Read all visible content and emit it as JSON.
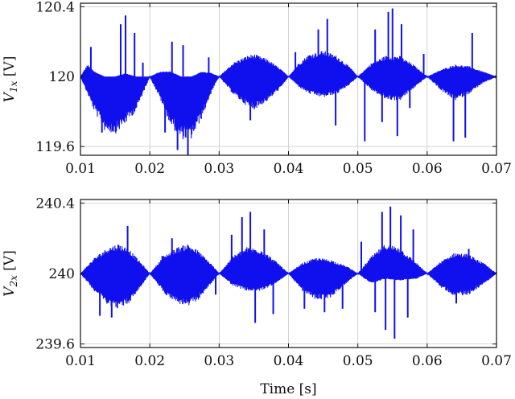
{
  "chart_data": [
    {
      "type": "line",
      "ylabel_main": "V",
      "ylabel_sub": "1x",
      "ylabel_unit": " [V]",
      "xlabel": "",
      "xlim": [
        0.01,
        0.07
      ],
      "ylim": [
        119.55,
        120.42
      ],
      "x_ticks": [
        0.01,
        0.02,
        0.03,
        0.04,
        0.05,
        0.06,
        0.07
      ],
      "x_tick_labels": [
        "0.01",
        "0.02",
        "0.03",
        "0.04",
        "0.05",
        "0.06",
        "0.07"
      ],
      "y_ticks": [
        119.6,
        120,
        120.4
      ],
      "y_tick_labels": [
        "119.6",
        "120",
        "120.4"
      ],
      "grid": true,
      "color": "#1010ee",
      "series": [
        {
          "center": 120,
          "envelope": [
            {
              "x": 0.01,
              "upper": 0.0,
              "lower": 0.0
            },
            {
              "x": 0.011,
              "upper": 0.07,
              "lower": -0.1
            },
            {
              "x": 0.012,
              "upper": 0.03,
              "lower": -0.2
            },
            {
              "x": 0.0135,
              "upper": 0.0,
              "lower": -0.31
            },
            {
              "x": 0.015,
              "upper": 0.0,
              "lower": -0.33
            },
            {
              "x": 0.0165,
              "upper": 0.02,
              "lower": -0.27
            },
            {
              "x": 0.018,
              "upper": 0.0,
              "lower": -0.2
            },
            {
              "x": 0.02,
              "upper": 0.0,
              "lower": 0.0
            },
            {
              "x": 0.0215,
              "upper": 0.03,
              "lower": -0.13
            },
            {
              "x": 0.023,
              "upper": 0.03,
              "lower": -0.28
            },
            {
              "x": 0.0245,
              "upper": 0.0,
              "lower": -0.36
            },
            {
              "x": 0.026,
              "upper": 0.0,
              "lower": -0.36
            },
            {
              "x": 0.0275,
              "upper": 0.03,
              "lower": -0.24
            },
            {
              "x": 0.029,
              "upper": 0.02,
              "lower": -0.08
            },
            {
              "x": 0.03,
              "upper": 0.0,
              "lower": 0.0
            },
            {
              "x": 0.032,
              "upper": 0.08,
              "lower": -0.1
            },
            {
              "x": 0.034,
              "upper": 0.12,
              "lower": -0.17
            },
            {
              "x": 0.035,
              "upper": 0.13,
              "lower": -0.19
            },
            {
              "x": 0.037,
              "upper": 0.1,
              "lower": -0.14
            },
            {
              "x": 0.039,
              "upper": 0.04,
              "lower": -0.06
            },
            {
              "x": 0.04,
              "upper": 0.0,
              "lower": 0.0
            },
            {
              "x": 0.0415,
              "upper": 0.08,
              "lower": -0.06
            },
            {
              "x": 0.043,
              "upper": 0.13,
              "lower": -0.1
            },
            {
              "x": 0.045,
              "upper": 0.15,
              "lower": -0.12
            },
            {
              "x": 0.047,
              "upper": 0.12,
              "lower": -0.1
            },
            {
              "x": 0.049,
              "upper": 0.05,
              "lower": -0.04
            },
            {
              "x": 0.05,
              "upper": 0.0,
              "lower": 0.0
            },
            {
              "x": 0.052,
              "upper": 0.08,
              "lower": -0.08
            },
            {
              "x": 0.054,
              "upper": 0.12,
              "lower": -0.13
            },
            {
              "x": 0.056,
              "upper": 0.12,
              "lower": -0.14
            },
            {
              "x": 0.058,
              "upper": 0.07,
              "lower": -0.07
            },
            {
              "x": 0.06,
              "upper": 0.0,
              "lower": 0.0
            },
            {
              "x": 0.062,
              "upper": 0.04,
              "lower": -0.08
            },
            {
              "x": 0.064,
              "upper": 0.07,
              "lower": -0.14
            },
            {
              "x": 0.066,
              "upper": 0.06,
              "lower": -0.1
            },
            {
              "x": 0.068,
              "upper": 0.03,
              "lower": -0.04
            },
            {
              "x": 0.07,
              "upper": 0.0,
              "lower": 0.0
            }
          ],
          "spikes": [
            {
              "x": 0.0115,
              "y": 120.17
            },
            {
              "x": 0.0123,
              "y": 119.93
            },
            {
              "x": 0.0131,
              "y": 119.68
            },
            {
              "x": 0.0158,
              "y": 120.3
            },
            {
              "x": 0.0165,
              "y": 120.35
            },
            {
              "x": 0.0178,
              "y": 120.25
            },
            {
              "x": 0.019,
              "y": 120.08
            },
            {
              "x": 0.0222,
              "y": 119.68
            },
            {
              "x": 0.0232,
              "y": 120.2
            },
            {
              "x": 0.024,
              "y": 119.58
            },
            {
              "x": 0.0248,
              "y": 120.18
            },
            {
              "x": 0.0255,
              "y": 119.55
            },
            {
              "x": 0.0285,
              "y": 120.11
            },
            {
              "x": 0.0345,
              "y": 119.75
            },
            {
              "x": 0.041,
              "y": 120.14
            },
            {
              "x": 0.0443,
              "y": 120.27
            },
            {
              "x": 0.0456,
              "y": 120.33
            },
            {
              "x": 0.0468,
              "y": 119.72
            },
            {
              "x": 0.051,
              "y": 119.63
            },
            {
              "x": 0.0525,
              "y": 120.27
            },
            {
              "x": 0.0535,
              "y": 119.74
            },
            {
              "x": 0.0544,
              "y": 120.37
            },
            {
              "x": 0.055,
              "y": 120.39
            },
            {
              "x": 0.0557,
              "y": 119.66
            },
            {
              "x": 0.0563,
              "y": 120.3
            },
            {
              "x": 0.0575,
              "y": 119.82
            },
            {
              "x": 0.0595,
              "y": 120.13
            },
            {
              "x": 0.0638,
              "y": 119.63
            },
            {
              "x": 0.0655,
              "y": 119.65
            },
            {
              "x": 0.0665,
              "y": 120.25
            }
          ]
        }
      ]
    },
    {
      "type": "line",
      "ylabel_main": "V",
      "ylabel_sub": "2x",
      "ylabel_unit": " [V]",
      "xlabel": "Time [s]",
      "xlim": [
        0.01,
        0.07
      ],
      "ylim": [
        239.58,
        240.42
      ],
      "x_ticks": [
        0.01,
        0.02,
        0.03,
        0.04,
        0.05,
        0.06,
        0.07
      ],
      "x_tick_labels": [
        "0.01",
        "0.02",
        "0.03",
        "0.04",
        "0.05",
        "0.06",
        "0.07"
      ],
      "y_ticks": [
        239.6,
        240,
        240.4
      ],
      "y_tick_labels": [
        "239.6",
        "240",
        "240.4"
      ],
      "grid": true,
      "color": "#1010ee",
      "series": [
        {
          "center": 240,
          "envelope": [
            {
              "x": 0.01,
              "upper": 0.0,
              "lower": 0.0
            },
            {
              "x": 0.012,
              "upper": 0.09,
              "lower": -0.1
            },
            {
              "x": 0.014,
              "upper": 0.15,
              "lower": -0.18
            },
            {
              "x": 0.0155,
              "upper": 0.17,
              "lower": -0.2
            },
            {
              "x": 0.017,
              "upper": 0.14,
              "lower": -0.17
            },
            {
              "x": 0.019,
              "upper": 0.05,
              "lower": -0.06
            },
            {
              "x": 0.02,
              "upper": 0.0,
              "lower": 0.0
            },
            {
              "x": 0.022,
              "upper": 0.1,
              "lower": -0.11
            },
            {
              "x": 0.024,
              "upper": 0.15,
              "lower": -0.17
            },
            {
              "x": 0.0255,
              "upper": 0.17,
              "lower": -0.19
            },
            {
              "x": 0.027,
              "upper": 0.13,
              "lower": -0.15
            },
            {
              "x": 0.029,
              "upper": 0.05,
              "lower": -0.05
            },
            {
              "x": 0.03,
              "upper": 0.0,
              "lower": 0.0
            },
            {
              "x": 0.032,
              "upper": 0.1,
              "lower": -0.07
            },
            {
              "x": 0.034,
              "upper": 0.15,
              "lower": -0.1
            },
            {
              "x": 0.036,
              "upper": 0.14,
              "lower": -0.1
            },
            {
              "x": 0.0385,
              "upper": 0.06,
              "lower": -0.05
            },
            {
              "x": 0.04,
              "upper": 0.0,
              "lower": 0.0
            },
            {
              "x": 0.042,
              "upper": 0.06,
              "lower": -0.1
            },
            {
              "x": 0.044,
              "upper": 0.09,
              "lower": -0.15
            },
            {
              "x": 0.046,
              "upper": 0.08,
              "lower": -0.14
            },
            {
              "x": 0.0485,
              "upper": 0.04,
              "lower": -0.05
            },
            {
              "x": 0.05,
              "upper": 0.0,
              "lower": 0.0
            },
            {
              "x": 0.052,
              "upper": 0.1,
              "lower": -0.06
            },
            {
              "x": 0.054,
              "upper": 0.17,
              "lower": -0.03
            },
            {
              "x": 0.056,
              "upper": 0.15,
              "lower": -0.04
            },
            {
              "x": 0.0585,
              "upper": 0.06,
              "lower": -0.03
            },
            {
              "x": 0.06,
              "upper": 0.0,
              "lower": 0.0
            },
            {
              "x": 0.062,
              "upper": 0.07,
              "lower": -0.08
            },
            {
              "x": 0.064,
              "upper": 0.12,
              "lower": -0.13
            },
            {
              "x": 0.066,
              "upper": 0.11,
              "lower": -0.12
            },
            {
              "x": 0.0685,
              "upper": 0.05,
              "lower": -0.05
            },
            {
              "x": 0.07,
              "upper": 0.0,
              "lower": 0.0
            }
          ],
          "spikes": [
            {
              "x": 0.0128,
              "y": 239.76
            },
            {
              "x": 0.0145,
              "y": 239.75
            },
            {
              "x": 0.0168,
              "y": 240.27
            },
            {
              "x": 0.0218,
              "y": 240.1
            },
            {
              "x": 0.0232,
              "y": 240.2
            },
            {
              "x": 0.0295,
              "y": 239.88
            },
            {
              "x": 0.0318,
              "y": 240.22
            },
            {
              "x": 0.0333,
              "y": 240.32
            },
            {
              "x": 0.0345,
              "y": 240.35
            },
            {
              "x": 0.0352,
              "y": 239.72
            },
            {
              "x": 0.0365,
              "y": 240.25
            },
            {
              "x": 0.0378,
              "y": 239.77
            },
            {
              "x": 0.0423,
              "y": 239.8
            },
            {
              "x": 0.0452,
              "y": 239.78
            },
            {
              "x": 0.0478,
              "y": 239.8
            },
            {
              "x": 0.0505,
              "y": 240.18
            },
            {
              "x": 0.0525,
              "y": 239.78
            },
            {
              "x": 0.0535,
              "y": 240.35
            },
            {
              "x": 0.054,
              "y": 239.68
            },
            {
              "x": 0.0547,
              "y": 240.38
            },
            {
              "x": 0.0553,
              "y": 239.63
            },
            {
              "x": 0.0562,
              "y": 240.33
            },
            {
              "x": 0.0572,
              "y": 239.75
            },
            {
              "x": 0.058,
              "y": 240.25
            },
            {
              "x": 0.0642,
              "y": 239.83
            },
            {
              "x": 0.066,
              "y": 240.14
            }
          ]
        }
      ]
    }
  ]
}
